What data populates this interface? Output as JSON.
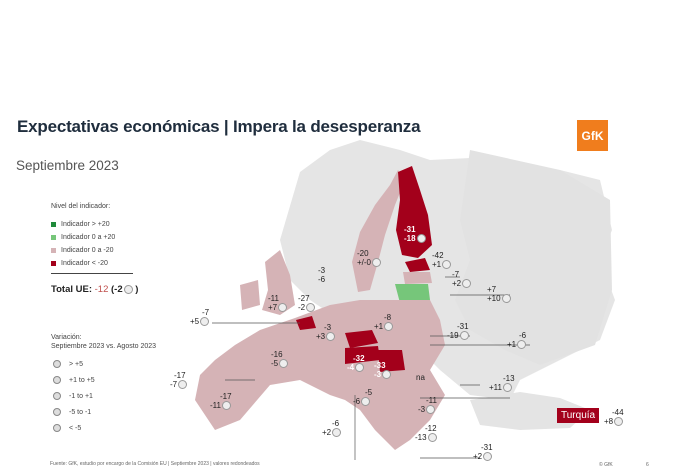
{
  "header": {
    "title": "Expectativas económicas | Impera la desesperanza",
    "subtitle": "Septiembre 2023",
    "logo_text": "GfK"
  },
  "legend_level": {
    "heading": "Nivel del indicador:",
    "items": [
      {
        "label": "Indicador > +20",
        "color": "#1f8a3a"
      },
      {
        "label": "Indicador 0 a +20",
        "color": "#76c67a"
      },
      {
        "label": "Indicador 0 a -20",
        "color": "#d5b3b6"
      },
      {
        "label": "Indicador < -20",
        "color": "#a3001b"
      }
    ]
  },
  "total": {
    "label": "Total UE:",
    "value": "-12",
    "change": "(-2",
    "close": ")"
  },
  "legend_change": {
    "heading_1": "Variación:",
    "heading_2": "Septiembre 2023 vs. Agosto 2023",
    "items": [
      "> +5",
      "+1 to +5",
      "-1 to +1",
      "-5 to -1",
      "< -5"
    ]
  },
  "labels": [
    {
      "value": "-31",
      "change": "-18"
    },
    {
      "value": "-42",
      "change": "+1"
    },
    {
      "value": "-20",
      "change": "+/-0"
    },
    {
      "value": "-3",
      "change": "-6"
    },
    {
      "value": "-7",
      "change": "+2"
    },
    {
      "value": "+7",
      "change": "+10"
    },
    {
      "value": "-11",
      "change": "+7"
    },
    {
      "value": "-27",
      "change": "-2"
    },
    {
      "value": "-7",
      "change": "+5"
    },
    {
      "value": "-8",
      "change": "+1"
    },
    {
      "value": "-3",
      "change": "+3"
    },
    {
      "value": "-31",
      "change": "-19"
    },
    {
      "value": "-6",
      "change": "+1"
    },
    {
      "value": "-16",
      "change": "-5"
    },
    {
      "value": "-32",
      "change": "-4"
    },
    {
      "value": "-33",
      "change": "-3"
    },
    {
      "value": "-17",
      "change": "-7"
    },
    {
      "value": "-17",
      "change": "-11"
    },
    {
      "value": "-5",
      "change": "-6"
    },
    {
      "value": "na",
      "change": ""
    },
    {
      "value": "-13",
      "change": "+11"
    },
    {
      "value": "-11",
      "change": "-3"
    },
    {
      "value": "-6",
      "change": "+2"
    },
    {
      "value": "-12",
      "change": "-13"
    },
    {
      "value": "-31",
      "change": "+2"
    }
  ],
  "turkey": {
    "label": "Turquía",
    "value": "-44",
    "change": "+8"
  },
  "footer": {
    "source": "Fuente: GfK, estudio por encargo de la Comisión EU | Septiembre 2023 | valores redondeados",
    "copyright": "© GfK",
    "page": "6"
  }
}
